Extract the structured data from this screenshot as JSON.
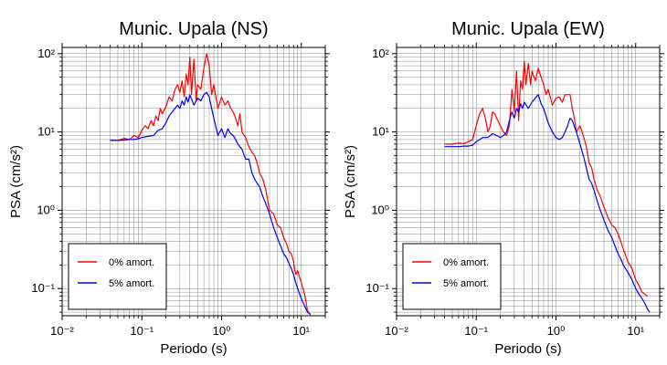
{
  "chart_data": [
    {
      "type": "line",
      "title": "Munic. Upala (NS)",
      "xlabel": "Periodo (s)",
      "ylabel": "PSA (cm/s²)",
      "xscale": "log",
      "yscale": "log",
      "xlim": [
        0.01,
        20
      ],
      "ylim": [
        0.045,
        120
      ],
      "grid": true,
      "legend_position": "bottom-left",
      "xtick_labels": [
        "10⁻²",
        "10⁻¹",
        "10⁰",
        "10¹"
      ],
      "ytick_labels": [
        "10⁻¹",
        "10⁰",
        "10¹",
        "10²"
      ],
      "series": [
        {
          "name": "0% amort.",
          "color": "#ff0000",
          "x": [
            0.04,
            0.05,
            0.06,
            0.07,
            0.08,
            0.09,
            0.1,
            0.11,
            0.12,
            0.13,
            0.14,
            0.15,
            0.16,
            0.17,
            0.18,
            0.2,
            0.22,
            0.24,
            0.26,
            0.28,
            0.3,
            0.32,
            0.34,
            0.36,
            0.38,
            0.4,
            0.42,
            0.45,
            0.48,
            0.5,
            0.55,
            0.6,
            0.65,
            0.7,
            0.75,
            0.8,
            0.9,
            1.0,
            1.1,
            1.2,
            1.3,
            1.4,
            1.5,
            1.6,
            1.7,
            1.8,
            2.0,
            2.2,
            2.4,
            2.6,
            2.8,
            3.0,
            3.3,
            3.6,
            4.0,
            4.5,
            5.0,
            5.5,
            6.0,
            6.5,
            7.0,
            7.5,
            8.0,
            8.5,
            9.0,
            9.5,
            10.0,
            11.0,
            12.0,
            13.0
          ],
          "y": [
            7.8,
            7.8,
            8.3,
            8.0,
            9.0,
            8.5,
            10.5,
            12.0,
            11.0,
            14.0,
            12.0,
            16.0,
            14.0,
            20.0,
            17.0,
            21.0,
            28.0,
            25.0,
            35.0,
            40.0,
            32.0,
            45.0,
            28.0,
            55.0,
            40.0,
            90.0,
            30.0,
            85.0,
            25.0,
            40.0,
            35.0,
            65.0,
            100.0,
            70.0,
            30.0,
            40.0,
            20.0,
            28.0,
            22.0,
            25.0,
            20.0,
            18.0,
            15.0,
            12.0,
            17.0,
            10.0,
            8.5,
            6.5,
            5.5,
            5.0,
            4.0,
            3.0,
            2.5,
            1.8,
            1.0,
            0.9,
            0.65,
            0.6,
            0.45,
            0.38,
            0.3,
            0.28,
            0.22,
            0.15,
            0.17,
            0.14,
            0.12,
            0.085,
            0.052,
            0.046
          ]
        },
        {
          "name": "5% amort.",
          "color": "#0000ff",
          "x": [
            0.04,
            0.05,
            0.06,
            0.07,
            0.08,
            0.09,
            0.1,
            0.12,
            0.14,
            0.16,
            0.18,
            0.2,
            0.22,
            0.24,
            0.26,
            0.28,
            0.3,
            0.32,
            0.34,
            0.36,
            0.38,
            0.4,
            0.45,
            0.5,
            0.55,
            0.6,
            0.65,
            0.7,
            0.75,
            0.8,
            0.9,
            1.0,
            1.1,
            1.2,
            1.3,
            1.4,
            1.5,
            1.6,
            1.8,
            2.0,
            2.2,
            2.4,
            2.6,
            2.8,
            3.0,
            3.3,
            3.6,
            4.0,
            4.5,
            5.0,
            5.5,
            6.0,
            6.5,
            7.0,
            7.5,
            8.0,
            8.5,
            9.0,
            10.0,
            11.0,
            12.0,
            13.0
          ],
          "y": [
            7.8,
            7.8,
            7.9,
            8.0,
            8.0,
            8.2,
            8.5,
            8.8,
            9.0,
            10.5,
            11.0,
            13.0,
            16.0,
            18.0,
            20.0,
            22.0,
            20.0,
            25.0,
            22.0,
            28.0,
            24.0,
            30.0,
            22.0,
            27.0,
            25.0,
            30.0,
            32.0,
            28.0,
            20.0,
            15.0,
            9.0,
            11.0,
            8.5,
            11.0,
            9.5,
            9.0,
            8.0,
            7.0,
            6.0,
            4.5,
            4.5,
            3.0,
            2.5,
            2.2,
            2.0,
            1.5,
            1.2,
            0.9,
            0.6,
            0.45,
            0.35,
            0.28,
            0.25,
            0.21,
            0.18,
            0.15,
            0.12,
            0.1,
            0.075,
            0.06,
            0.05,
            0.047
          ]
        }
      ]
    },
    {
      "type": "line",
      "title": "Munic. Upala (EW)",
      "xlabel": "Periodo (s)",
      "ylabel": "PSA (cm/s²)",
      "xscale": "log",
      "yscale": "log",
      "xlim": [
        0.01,
        20
      ],
      "ylim": [
        0.045,
        120
      ],
      "grid": true,
      "legend_position": "bottom-left",
      "xtick_labels": [
        "10⁻²",
        "10⁻¹",
        "10⁰",
        "10¹"
      ],
      "ytick_labels": [
        "10⁻¹",
        "10⁰",
        "10¹",
        "10²"
      ],
      "series": [
        {
          "name": "0% amort.",
          "color": "#ff0000",
          "x": [
            0.04,
            0.05,
            0.06,
            0.07,
            0.08,
            0.09,
            0.1,
            0.11,
            0.12,
            0.13,
            0.14,
            0.15,
            0.16,
            0.17,
            0.18,
            0.2,
            0.22,
            0.24,
            0.26,
            0.28,
            0.3,
            0.32,
            0.34,
            0.36,
            0.38,
            0.4,
            0.42,
            0.45,
            0.48,
            0.5,
            0.55,
            0.6,
            0.65,
            0.7,
            0.75,
            0.8,
            0.9,
            1.0,
            1.1,
            1.2,
            1.3,
            1.5,
            1.6,
            1.7,
            1.8,
            2.0,
            2.2,
            2.4,
            2.6,
            2.8,
            3.0,
            3.3,
            3.6,
            4.0,
            4.5,
            5.0,
            5.5,
            6.0,
            6.5,
            7.0,
            8.0,
            9.0,
            10.0,
            11.0,
            12.0,
            13.0,
            14.0
          ],
          "y": [
            7.0,
            7.0,
            7.2,
            7.1,
            7.5,
            8.0,
            12.0,
            17.0,
            20.0,
            15.0,
            10.0,
            12.0,
            18.0,
            17.0,
            15.0,
            12.0,
            10.0,
            9.0,
            12.0,
            35.0,
            18.0,
            60.0,
            14.0,
            45.0,
            35.0,
            80.0,
            40.0,
            75.0,
            40.0,
            60.0,
            45.0,
            65.0,
            50.0,
            40.0,
            30.0,
            35.0,
            22.0,
            27.0,
            28.0,
            24.0,
            30.0,
            30.0,
            20.0,
            15.0,
            10.0,
            12.0,
            9.0,
            6.5,
            4.0,
            3.5,
            2.5,
            1.8,
            1.5,
            1.1,
            0.8,
            0.65,
            0.6,
            0.5,
            0.4,
            0.32,
            0.22,
            0.18,
            0.13,
            0.11,
            0.09,
            0.085,
            0.08
          ]
        },
        {
          "name": "5% amort.",
          "color": "#0000ff",
          "x": [
            0.04,
            0.05,
            0.06,
            0.07,
            0.08,
            0.09,
            0.1,
            0.12,
            0.14,
            0.16,
            0.18,
            0.2,
            0.22,
            0.24,
            0.26,
            0.28,
            0.3,
            0.32,
            0.34,
            0.36,
            0.38,
            0.4,
            0.45,
            0.5,
            0.55,
            0.6,
            0.65,
            0.7,
            0.8,
            0.9,
            1.0,
            1.1,
            1.2,
            1.3,
            1.4,
            1.5,
            1.6,
            1.8,
            2.0,
            2.2,
            2.4,
            2.6,
            2.8,
            3.0,
            3.3,
            3.6,
            4.0,
            4.5,
            5.0,
            5.5,
            6.0,
            6.5,
            7.0,
            8.0,
            9.0,
            10.0,
            11.0,
            12.0,
            13.0,
            14.0,
            15.0
          ],
          "y": [
            6.5,
            6.5,
            6.5,
            6.6,
            6.6,
            6.8,
            7.5,
            8.5,
            8.5,
            9.5,
            9.0,
            8.5,
            9.0,
            10.0,
            14.0,
            18.0,
            15.0,
            20.0,
            18.0,
            23.0,
            20.0,
            24.0,
            20.0,
            24.0,
            27.0,
            30.0,
            23.0,
            20.0,
            13.0,
            10.0,
            8.5,
            8.0,
            8.5,
            10.0,
            12.0,
            15.0,
            14.0,
            10.0,
            7.0,
            5.0,
            3.5,
            2.5,
            2.2,
            1.8,
            1.3,
            1.0,
            0.75,
            0.55,
            0.45,
            0.35,
            0.28,
            0.24,
            0.2,
            0.16,
            0.13,
            0.1,
            0.085,
            0.075,
            0.065,
            0.055,
            0.05
          ]
        }
      ]
    }
  ]
}
